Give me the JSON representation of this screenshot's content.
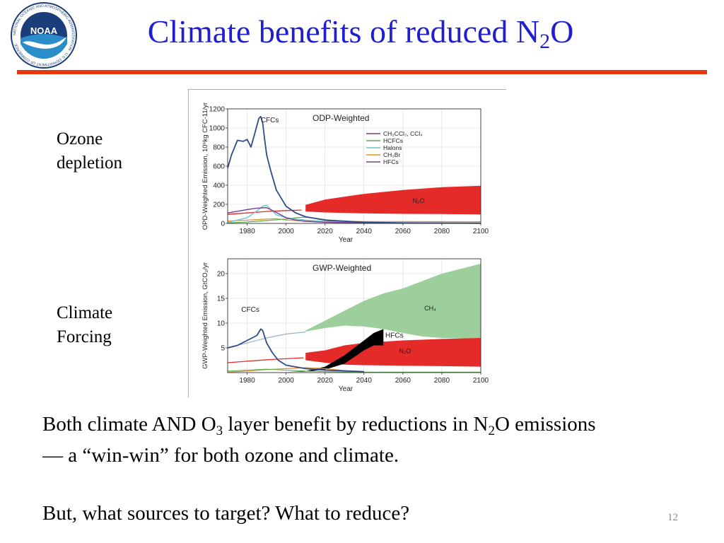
{
  "header": {
    "title_main": "Climate benefits of reduced N",
    "title_sub": "2",
    "title_end": "O",
    "logo_text": "NOAA",
    "logo_ring": "NATIONAL OCEANIC AND ATMOSPHERIC ADMINISTRATION · U.S. DEPARTMENT OF COMMERCE"
  },
  "labels": {
    "ozone_1": "Ozone",
    "ozone_2": "depletion",
    "climate_1": "Climate",
    "climate_2": "Forcing"
  },
  "body": {
    "line1_a": "Both climate AND O",
    "line1_sub1": "3",
    "line1_b": " layer benefit by reductions in N",
    "line1_sub2": "2",
    "line1_c": "O emissions",
    "line2": "— a “win-win” for both ozone and climate.",
    "line3": "But, what sources to target? What to reduce?"
  },
  "page_number": "12",
  "colors": {
    "title": "#1f1fcf",
    "rule": "#e8390e",
    "cfc": "#2e4a8c",
    "ch3ccl3": "#7a3a8c",
    "hcfc": "#5aaa4a",
    "halons": "#6cc8d0",
    "ch3br": "#e09030",
    "hfc_line": "#6a4a7a",
    "n2o": "#e52a2a",
    "ch4": "#9ccf9c"
  },
  "chart_data": [
    {
      "type": "line",
      "title": "ODP-Weighted",
      "xlabel": "Year",
      "ylabel": "OPD-Weighted Emission, 10⁶kg CFC-11/yr",
      "xlim": [
        1970,
        2100
      ],
      "ylim": [
        0,
        1200
      ],
      "xticks": [
        "1980",
        "2000",
        "2020",
        "2040",
        "2060",
        "2080",
        "2100"
      ],
      "yticks": [
        "0",
        "200",
        "400",
        "600",
        "800",
        "1000",
        "1200"
      ],
      "legend_position": "top-right",
      "legend": [
        "CH₃CCl₃, CCl₄",
        "HCFCs",
        "Halons",
        "CH₃Br",
        "HFCs"
      ],
      "annotations": [
        "CFCs",
        "N₂O"
      ],
      "series": [
        {
          "label": "CFCs",
          "x": [
            1970,
            1972,
            1975,
            1978,
            1980,
            1982,
            1984,
            1986,
            1987,
            1988,
            1989,
            1990,
            1992,
            1995,
            2000,
            2005,
            2010,
            2020,
            2040,
            2060,
            2100
          ],
          "y": [
            580,
            720,
            870,
            860,
            880,
            800,
            950,
            1100,
            1120,
            1050,
            880,
            720,
            560,
            350,
            180,
            110,
            70,
            35,
            12,
            5,
            2
          ]
        },
        {
          "label": "CH₃CCl₃, CCl₄",
          "x": [
            1970,
            1980,
            1985,
            1990,
            1995,
            2000,
            2005,
            2010,
            2020,
            2040,
            2100
          ],
          "y": [
            110,
            145,
            160,
            165,
            115,
            60,
            35,
            22,
            12,
            5,
            2
          ]
        },
        {
          "label": "HCFCs",
          "x": [
            1970,
            1980,
            1990,
            2000,
            2005,
            2010,
            2015,
            2020,
            2030,
            2040,
            2060,
            2100
          ],
          "y": [
            5,
            15,
            30,
            45,
            60,
            65,
            55,
            40,
            20,
            8,
            2,
            0
          ]
        },
        {
          "label": "Halons",
          "x": [
            1970,
            1980,
            1985,
            1988,
            1990,
            1992,
            1995,
            2000,
            2010,
            2020,
            2040,
            2100
          ],
          "y": [
            10,
            60,
            130,
            180,
            190,
            150,
            90,
            60,
            35,
            20,
            8,
            2
          ]
        },
        {
          "label": "CH₃Br",
          "x": [
            1970,
            1980,
            1990,
            1995,
            2000,
            2010,
            2020,
            2040,
            2100
          ],
          "y": [
            25,
            35,
            45,
            50,
            35,
            25,
            22,
            20,
            18
          ]
        },
        {
          "label": "N₂O baseline",
          "x": [
            1970,
            1980,
            1990,
            2000,
            2008
          ],
          "y": [
            95,
            110,
            125,
            135,
            140
          ]
        },
        {
          "label": "N₂O band upper",
          "x": [
            2010,
            2020,
            2040,
            2060,
            2080,
            2100
          ],
          "y": [
            195,
            250,
            310,
            350,
            380,
            395
          ]
        },
        {
          "label": "N₂O band lower",
          "x": [
            2010,
            2020,
            2040,
            2060,
            2080,
            2100
          ],
          "y": [
            125,
            115,
            105,
            100,
            98,
            95
          ]
        }
      ]
    },
    {
      "type": "area",
      "title": "GWP-Weighted",
      "xlabel": "Year",
      "ylabel": "GWP-Weighted Emission, GtCO₂/yr",
      "xlim": [
        1970,
        2100
      ],
      "ylim": [
        0,
        23
      ],
      "xticks": [
        "1980",
        "2000",
        "2020",
        "2040",
        "2060",
        "2080",
        "2100"
      ],
      "yticks": [
        "5",
        "10",
        "15",
        "20"
      ],
      "annotations": [
        "CFCs",
        "CH₄",
        "HFCs",
        "N₂O"
      ],
      "series": [
        {
          "label": "CFCs",
          "x": [
            1970,
            1975,
            1980,
            1985,
            1987,
            1988,
            1990,
            1993,
            1996,
            2000,
            2010,
            2020,
            2040
          ],
          "y": [
            5.0,
            5.5,
            6.5,
            7.5,
            8.8,
            8.5,
            6.0,
            4.0,
            2.5,
            1.5,
            0.8,
            0.5,
            0.2
          ]
        },
        {
          "label": "CH₄ baseline",
          "x": [
            1970,
            1980,
            1990,
            2000,
            2010
          ],
          "y": [
            5.0,
            6.0,
            7.0,
            7.8,
            8.2
          ]
        },
        {
          "label": "CH₄ band upper",
          "x": [
            2010,
            2020,
            2030,
            2040,
            2050,
            2060,
            2070,
            2080,
            2090,
            2100
          ],
          "y": [
            8.5,
            10.5,
            12.5,
            14.5,
            16.0,
            17.0,
            18.5,
            20.0,
            21.0,
            22.0
          ]
        },
        {
          "label": "CH₄ band lower",
          "x": [
            2010,
            2020,
            2030,
            2040,
            2050,
            2060,
            2070,
            2080,
            2090,
            2100
          ],
          "y": [
            8.3,
            9.0,
            9.5,
            9.3,
            8.8,
            8.0,
            7.3,
            7.0,
            6.9,
            6.8
          ]
        },
        {
          "label": "N₂O baseline",
          "x": [
            1970,
            1980,
            1990,
            2000,
            2009
          ],
          "y": [
            2.0,
            2.3,
            2.6,
            2.8,
            3.0
          ]
        },
        {
          "label": "N₂O band upper",
          "x": [
            2010,
            2020,
            2030,
            2040,
            2060,
            2080,
            2100
          ],
          "y": [
            4.0,
            4.5,
            5.5,
            6.0,
            6.5,
            6.8,
            7.0
          ]
        },
        {
          "label": "N₂O band lower",
          "x": [
            2010,
            2020,
            2030,
            2040,
            2060,
            2080,
            2100
          ],
          "y": [
            2.5,
            2.0,
            1.6,
            1.5,
            1.4,
            1.3,
            1.2
          ]
        },
        {
          "label": "HFCs upper",
          "x": [
            2000,
            2010,
            2020,
            2030,
            2040,
            2045,
            2050
          ],
          "y": [
            0.1,
            0.3,
            1.2,
            3.5,
            6.5,
            8.0,
            8.8
          ]
        },
        {
          "label": "HFCs lower",
          "x": [
            2000,
            2010,
            2020,
            2030,
            2040,
            2045,
            2050
          ],
          "y": [
            0.1,
            0.2,
            0.6,
            1.8,
            4.5,
            5.5,
            5.5
          ]
        },
        {
          "label": "HCFCs",
          "x": [
            1970,
            1980,
            1990,
            2000,
            2010,
            2020,
            2030,
            2040
          ],
          "y": [
            0.1,
            0.3,
            0.6,
            0.8,
            1.0,
            0.8,
            0.4,
            0.2
          ]
        },
        {
          "label": "Other",
          "x": [
            1970,
            1980,
            1990,
            2000,
            2010,
            2020,
            2040,
            2100
          ],
          "y": [
            0.3,
            0.5,
            0.7,
            0.5,
            0.3,
            0.2,
            0.1,
            0.1
          ]
        }
      ]
    }
  ]
}
